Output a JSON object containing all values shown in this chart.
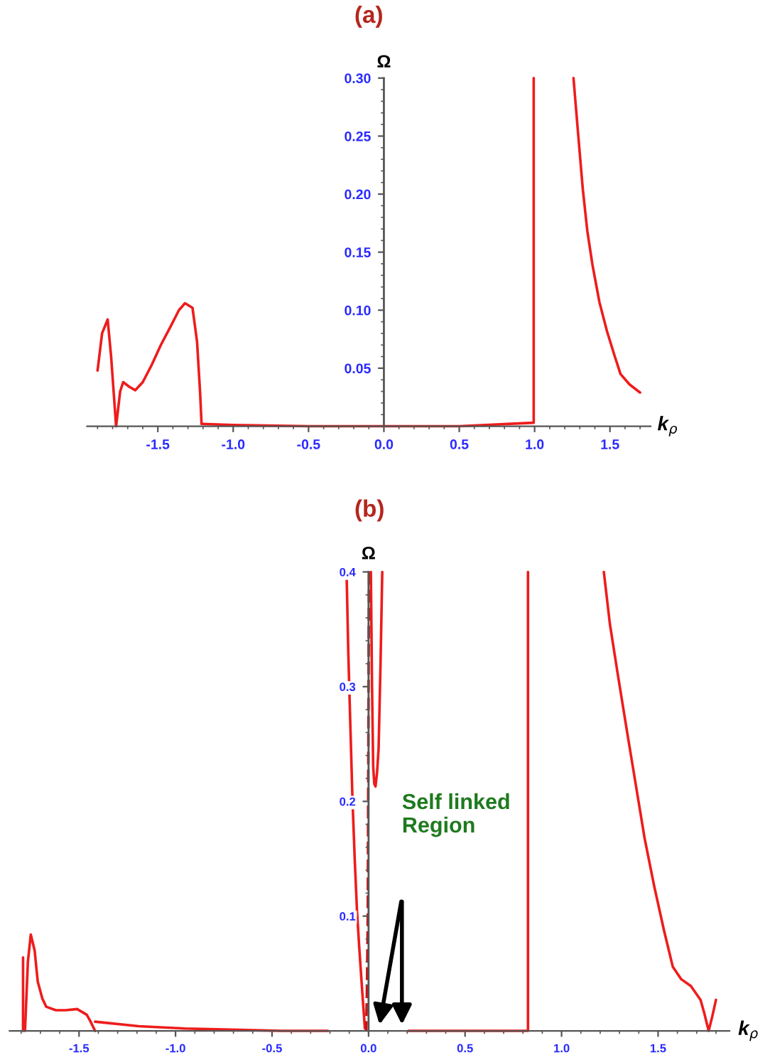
{
  "chart_data": [
    {
      "type": "line",
      "title": "(a)",
      "xlabel": "k$_{ρ}$",
      "ylabel": "Ω",
      "xlim": [
        -1.97,
        1.77
      ],
      "ylim": [
        0,
        0.3
      ],
      "xticks": [
        -1.5,
        {
          "value": -1,
          "label": "-1.0"
        },
        -0.5,
        {
          "value": 0,
          "label": "0.0"
        },
        0.5,
        {
          "value": 1,
          "label": "1.0"
        },
        1.5
      ],
      "yticks": [
        0.05,
        {
          "value": 0.1,
          "label": "0.10"
        },
        0.15,
        {
          "value": 0.2,
          "label": "0.20"
        },
        0.25,
        {
          "value": 0.3,
          "label": "0.30"
        }
      ],
      "series": [
        {
          "color": "#ee1c1c",
          "x": [
            -1.9,
            -1.87,
            -1.833,
            -1.81,
            -1.777
          ],
          "values": [
            0.048,
            0.08,
            0.092,
            0.06,
            0.0
          ]
        },
        {
          "color": "#ee1c1c",
          "x": [
            -1.777,
            -1.75,
            -1.73,
            -1.69,
            -1.65,
            -1.6,
            -1.54,
            -1.48,
            -1.415,
            -1.36,
            -1.32,
            -1.27,
            -1.24,
            -1.22,
            -1.21
          ],
          "values": [
            0.0,
            0.03,
            0.038,
            0.034,
            0.031,
            0.038,
            0.053,
            0.07,
            0.086,
            0.1,
            0.106,
            0.102,
            0.073,
            0.03,
            0.002
          ]
        },
        {
          "color": "#ee1c1c",
          "x": [
            -1.21,
            -1.0,
            -0.5,
            0.0,
            0.5,
            0.994,
            0.994,
            0.994
          ],
          "values": [
            0.002,
            0.001,
            0.0,
            0.0,
            0.0,
            0.003,
            0.15,
            0.3
          ]
        },
        {
          "color": "#ee1c1c",
          "x": [
            1.258,
            1.29,
            1.32,
            1.35,
            1.384,
            1.43,
            1.48,
            1.53,
            1.57,
            1.63,
            1.7
          ],
          "values": [
            0.3,
            0.25,
            0.204,
            0.168,
            0.139,
            0.107,
            0.082,
            0.061,
            0.045,
            0.036,
            0.029
          ]
        }
      ]
    },
    {
      "type": "line",
      "title": "(b)",
      "xlabel": "k$_{ρ}$",
      "ylabel": "Ω",
      "xlim": [
        -1.86,
        1.87
      ],
      "ylim": [
        0,
        0.4
      ],
      "xticks": [
        -1.5,
        {
          "value": -1,
          "label": "-1.0"
        },
        -0.5,
        {
          "value": 0,
          "label": "0.0"
        },
        0.5,
        {
          "value": 1,
          "label": "1.0"
        },
        1.5
      ],
      "yticks": [
        0.1,
        0.2,
        0.3,
        0.4
      ],
      "annotations": [
        "Self linked\nRegion"
      ],
      "series": [
        {
          "color": "#ee1c1c",
          "x": [
            -1.79,
            -1.79
          ],
          "values": [
            0.0,
            0.064
          ]
        },
        {
          "color": "#ee1c1c",
          "x": [
            -1.78,
            -1.765,
            -1.75,
            -1.73,
            -1.714,
            -1.69,
            -1.67,
            -1.62,
            -1.57,
            -1.51,
            -1.46,
            -1.44,
            -1.417
          ],
          "values": [
            0.0,
            0.06,
            0.084,
            0.07,
            0.043,
            0.028,
            0.021,
            0.018,
            0.018,
            0.019,
            0.014,
            0.008,
            0.0
          ]
        },
        {
          "color": "#ee1c1c",
          "x": [
            -1.417,
            -1.19,
            -0.95,
            -0.71,
            -0.45,
            -0.21
          ],
          "values": [
            0.008,
            0.004,
            0.002,
            0.001,
            0.0,
            0.0
          ]
        },
        {
          "color": "#ee1c1c",
          "x": [
            -0.114,
            -0.105,
            -0.095,
            -0.083,
            -0.071,
            -0.06,
            -0.048,
            -0.033,
            -0.019
          ],
          "values": [
            0.4,
            0.33,
            0.27,
            0.2,
            0.147,
            0.105,
            0.072,
            0.035,
            0.002
          ]
        },
        {
          "color": "#cc1010",
          "line_style": "dashed",
          "x": [
            0.003,
            0.001,
            0.0,
            -0.002,
            -0.004,
            -0.008,
            -0.012
          ],
          "values": [
            0.4,
            0.35,
            0.3,
            0.2,
            0.1,
            0.04,
            0.0
          ]
        },
        {
          "color": "#ee1c1c",
          "x": [
            0.012,
            0.018,
            0.024,
            0.03,
            0.036,
            0.044,
            0.052,
            0.062,
            0.071
          ],
          "values": [
            0.4,
            0.3,
            0.23,
            0.215,
            0.213,
            0.225,
            0.246,
            0.32,
            0.4
          ]
        },
        {
          "color": "#ee1c1c",
          "x": [
            0.207,
            0.5,
            0.826,
            0.826,
            0.826
          ],
          "values": [
            0.0,
            0.0,
            0.0,
            0.095,
            0.4
          ]
        },
        {
          "color": "#ee1c1c",
          "x": [
            1.219,
            1.25,
            1.29,
            1.34,
            1.386,
            1.43,
            1.48,
            1.53,
            1.576,
            1.62,
            1.67,
            1.72,
            1.74,
            1.762,
            1.78,
            1.8
          ],
          "values": [
            0.4,
            0.355,
            0.312,
            0.26,
            0.213,
            0.168,
            0.126,
            0.088,
            0.056,
            0.045,
            0.039,
            0.027,
            0.015,
            0.0,
            0.012,
            0.027
          ]
        }
      ]
    }
  ]
}
